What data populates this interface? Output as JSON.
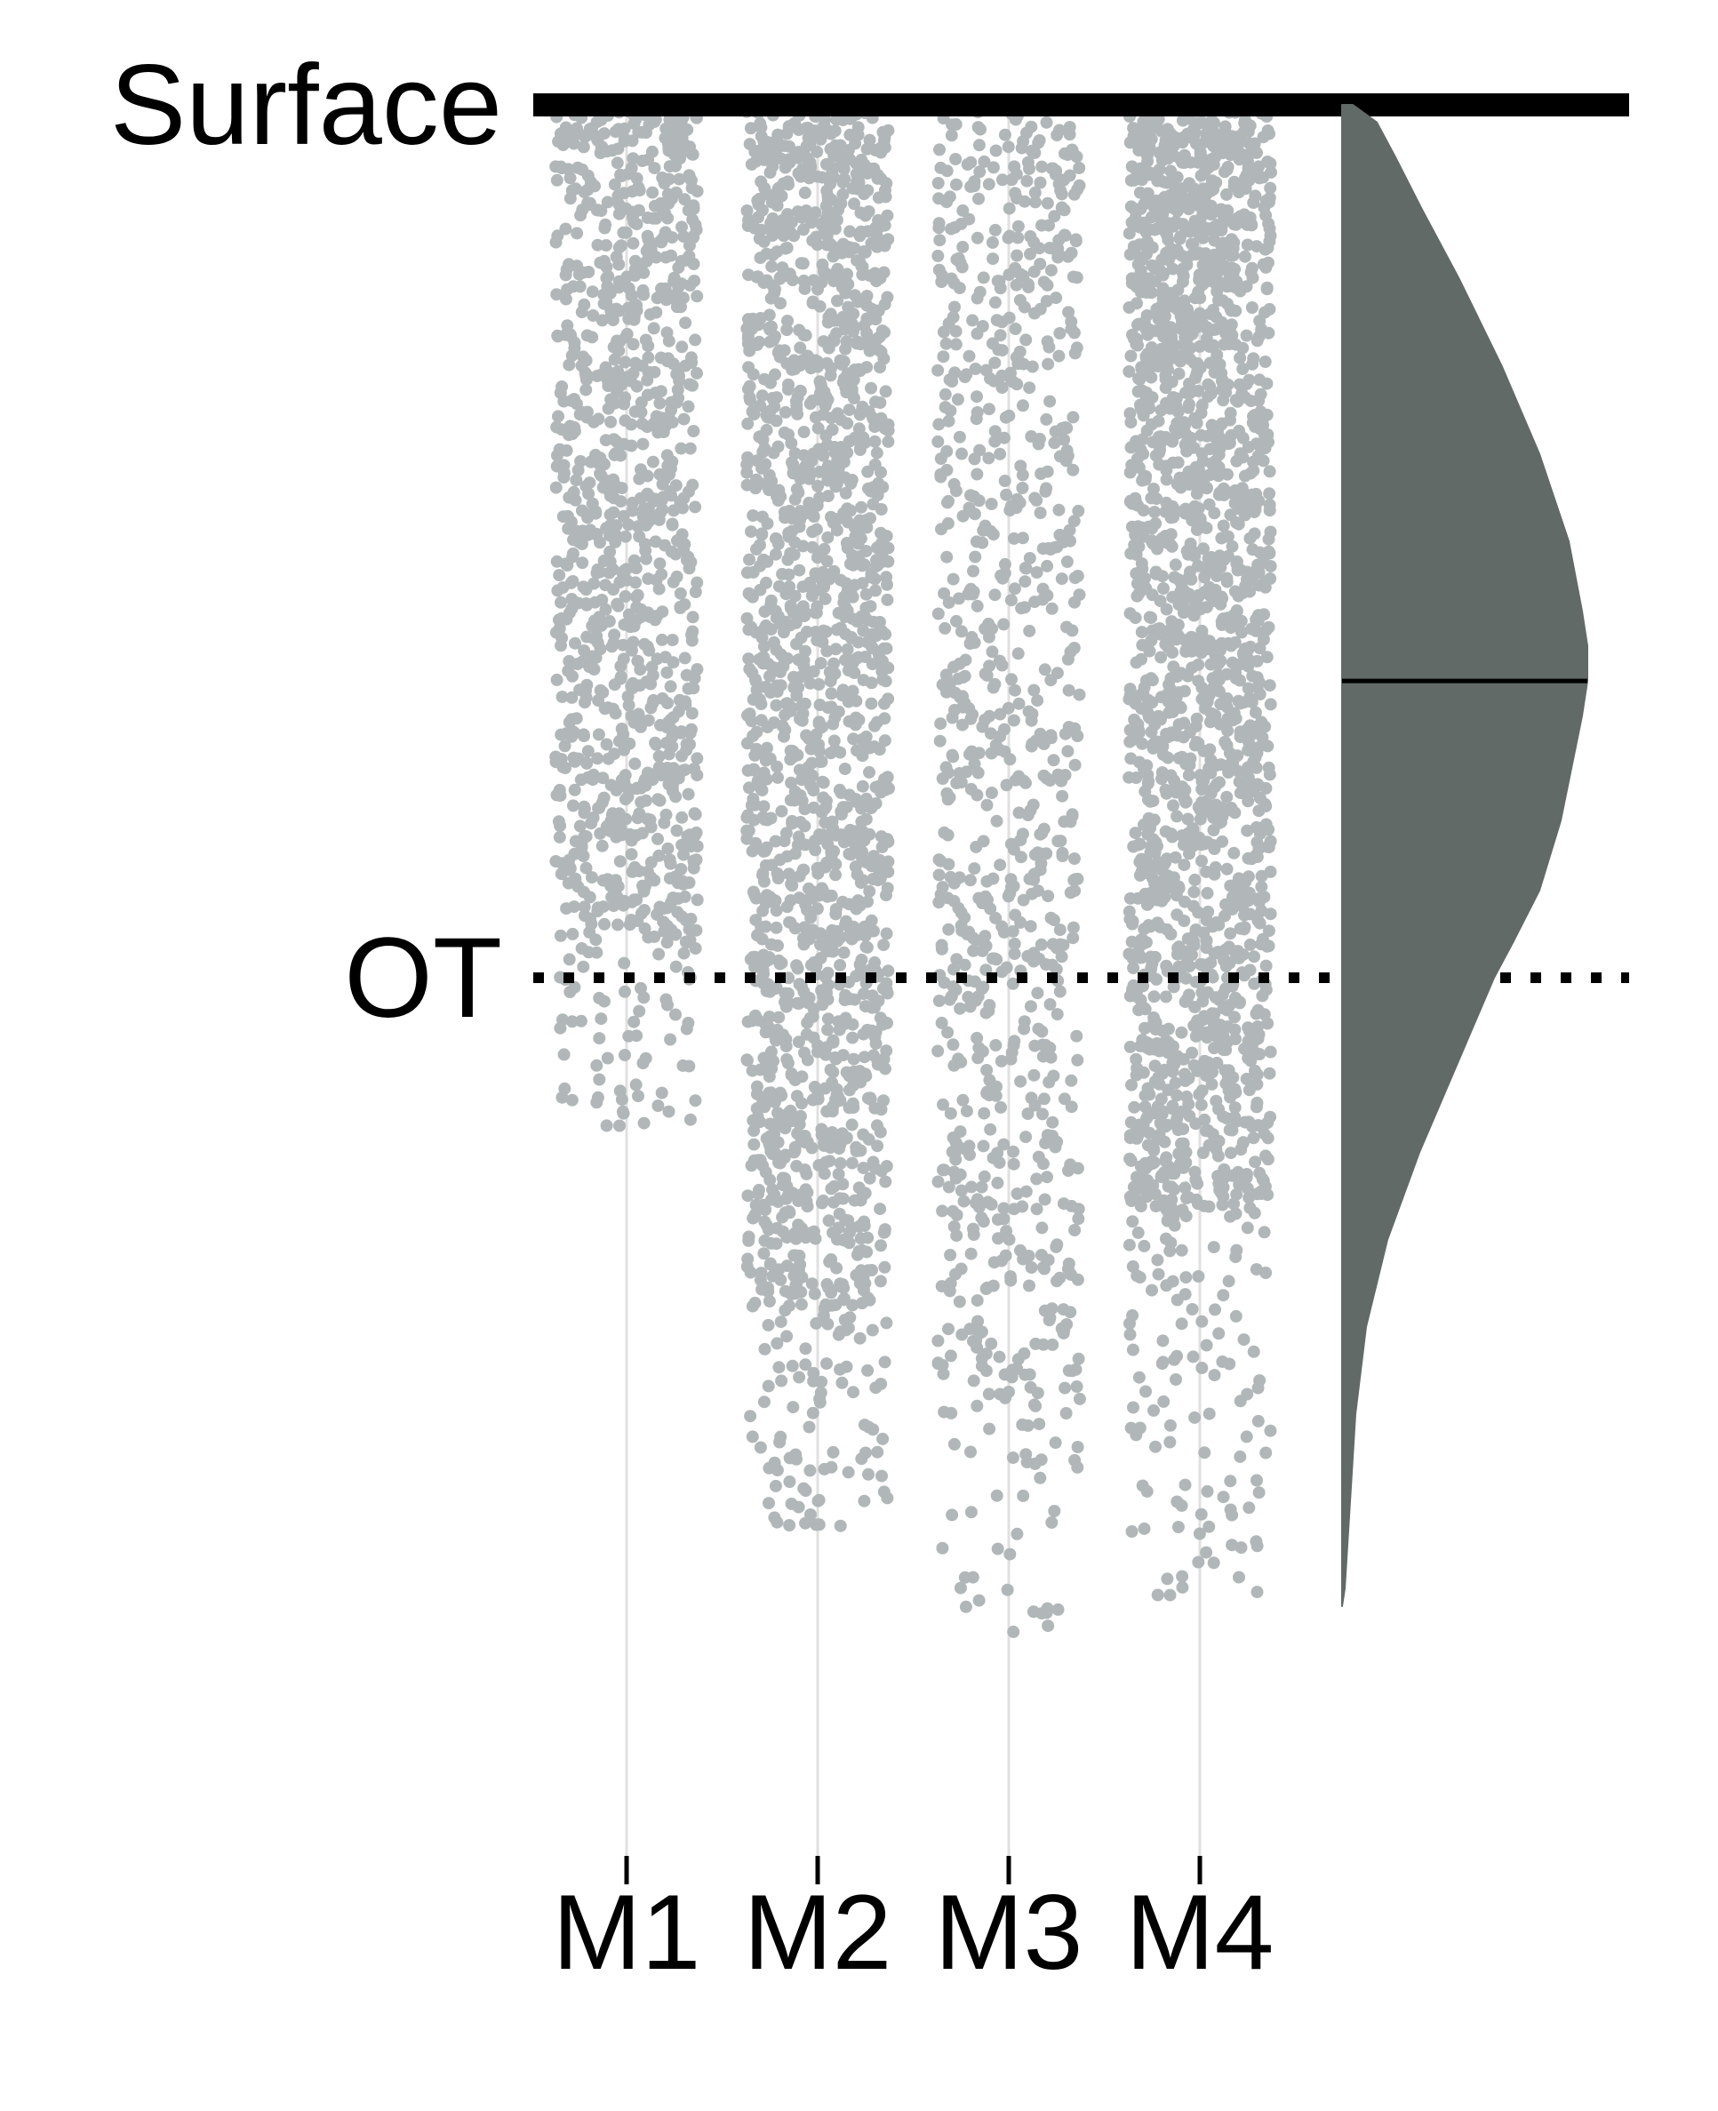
{
  "chart_data": {
    "type": "scatter",
    "subtype": "jittered strip plot with half-violin density",
    "title": "",
    "xlabel": "",
    "ylabel": "",
    "categories": [
      "M1",
      "M2",
      "M3",
      "M4"
    ],
    "depth_axis": {
      "orientation": "downward from top reference line",
      "units": "unlabeled relative depth (Surface = 0, OT = 1)",
      "range": [
        0,
        1.8
      ]
    },
    "reference_lines": [
      {
        "label": "Surface",
        "value": 0,
        "style": "solid"
      },
      {
        "label": "OT",
        "value": 1,
        "style": "dotted"
      }
    ],
    "series": [
      {
        "category": "M1",
        "point_count_approx": 1100,
        "min_depth": 0.0,
        "max_depth": 1.17,
        "bulk_upper_depth": 0.95
      },
      {
        "category": "M2",
        "point_count_approx": 1800,
        "min_depth": 0.0,
        "max_depth": 1.63,
        "bulk_upper_depth": 1.35
      },
      {
        "category": "M3",
        "point_count_approx": 900,
        "min_depth": 0.0,
        "max_depth": 1.75,
        "bulk_upper_depth": 1.45
      },
      {
        "category": "M4",
        "point_count_approx": 2000,
        "min_depth": 0.0,
        "max_depth": 1.71,
        "bulk_upper_depth": 1.25
      }
    ],
    "density": {
      "description": "pooled density over all categories, drawn as right half-violin",
      "median_depth": 0.66,
      "profile": [
        [
          0.0,
          0.04
        ],
        [
          0.02,
          0.13
        ],
        [
          0.06,
          0.2
        ],
        [
          0.12,
          0.3
        ],
        [
          0.2,
          0.44
        ],
        [
          0.3,
          0.6
        ],
        [
          0.4,
          0.74
        ],
        [
          0.5,
          0.85
        ],
        [
          0.58,
          0.9
        ],
        [
          0.62,
          0.92
        ],
        [
          0.66,
          0.92
        ],
        [
          0.7,
          0.9
        ],
        [
          0.76,
          0.86
        ],
        [
          0.82,
          0.82
        ],
        [
          0.9,
          0.74
        ],
        [
          0.96,
          0.64
        ],
        [
          1.0,
          0.57
        ],
        [
          1.1,
          0.43
        ],
        [
          1.2,
          0.29
        ],
        [
          1.3,
          0.17
        ],
        [
          1.4,
          0.09
        ],
        [
          1.5,
          0.05
        ],
        [
          1.6,
          0.03
        ],
        [
          1.7,
          0.01
        ],
        [
          1.72,
          0.0
        ]
      ]
    },
    "grid": "vertical lines at each category",
    "legend": "none",
    "colors": {
      "points": "#b1b7b8",
      "density_fill": "#626a68",
      "median_line": "#000000",
      "reference_lines": "#000000",
      "category_gridlines": "#e0e0e0"
    }
  }
}
